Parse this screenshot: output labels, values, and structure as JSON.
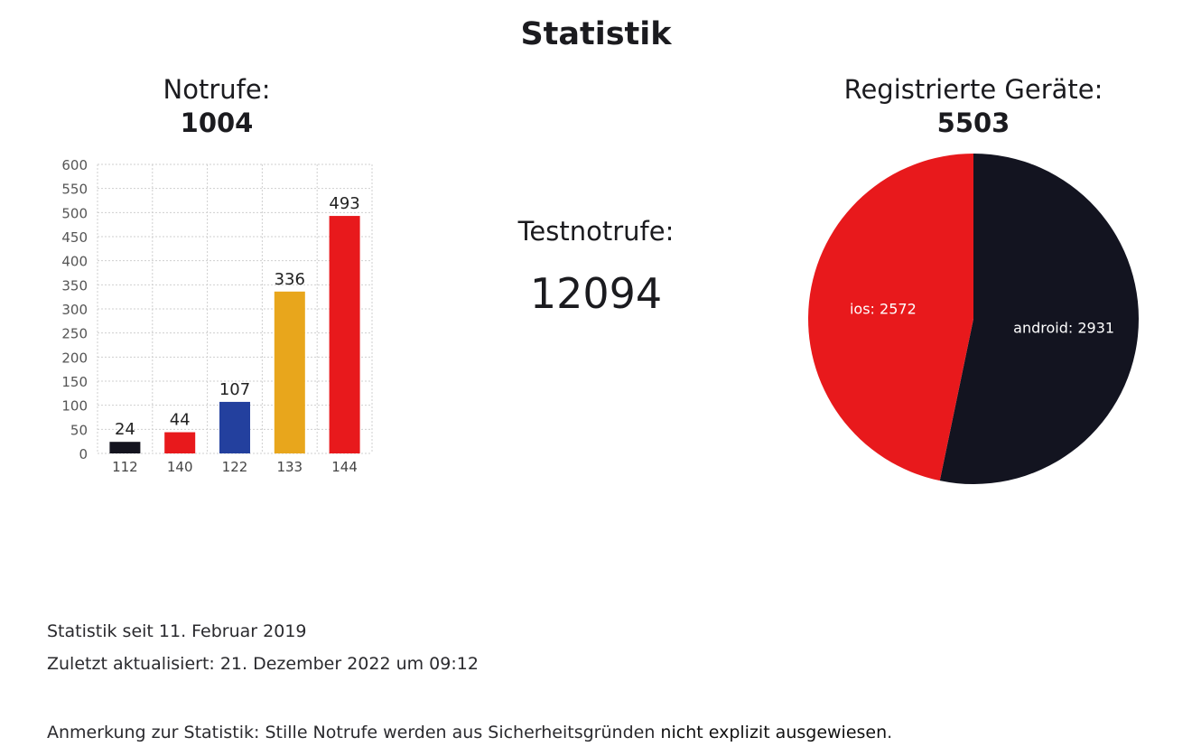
{
  "page": {
    "title": "Statistik"
  },
  "notrufe": {
    "label": "Notrufe:",
    "total": "1004"
  },
  "testnotrufe": {
    "label": "Testnotrufe:",
    "total": "12094"
  },
  "geraete": {
    "label": "Registrierte Geräte:",
    "total": "5503"
  },
  "footer": {
    "since": "Statistik seit 11. Februar 2019",
    "updated": "Zuletzt aktualisiert: 21. Dezember 2022 um 09:12",
    "note_prefix": "Anmerkung zur Statistik: Stille Notrufe werden aus Sicherheitsgründen ",
    "note_emphasis": "nicht explizit ausgewiesen",
    "note_suffix": "."
  },
  "chart_data": [
    {
      "type": "bar",
      "categories": [
        "112",
        "140",
        "122",
        "133",
        "144"
      ],
      "values": [
        24,
        44,
        107,
        336,
        493
      ],
      "colors": [
        "#14141f",
        "#e8191c",
        "#23409e",
        "#e8a61c",
        "#e8191c"
      ],
      "ylim": [
        0,
        600
      ],
      "yticks": [
        0,
        50,
        100,
        150,
        200,
        250,
        300,
        350,
        400,
        450,
        500,
        550,
        600
      ],
      "grid": true,
      "data_labels": true
    },
    {
      "type": "pie",
      "slices": [
        {
          "label": "android",
          "value": 2931,
          "color": "#131420"
        },
        {
          "label": "ios",
          "value": 2572,
          "color": "#e8191c"
        }
      ],
      "start_angle": "12 o'clock",
      "direction": "clockwise",
      "label_color": "#ffffff"
    }
  ]
}
